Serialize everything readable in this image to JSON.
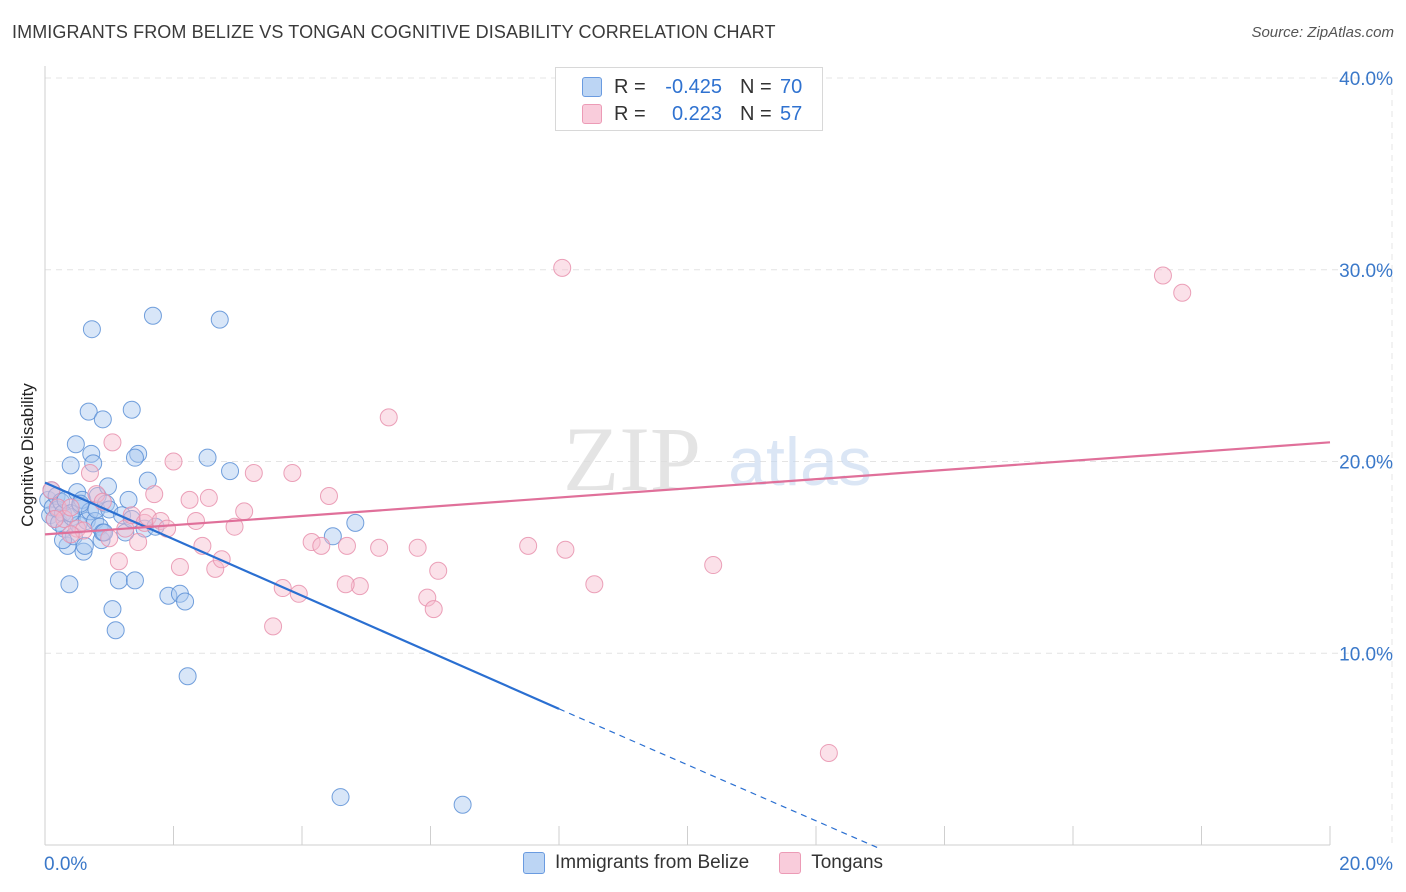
{
  "title": "IMMIGRANTS FROM BELIZE VS TONGAN COGNITIVE DISABILITY CORRELATION CHART",
  "source": "Source: ZipAtlas.com",
  "watermark": {
    "zip": "ZIP",
    "atlas": "atlas"
  },
  "legend": {
    "r_label": "R =",
    "n_label": "N =",
    "series1": {
      "r": "-0.425",
      "n": "70"
    },
    "series2": {
      "r": "0.223",
      "n": "57"
    }
  },
  "colors": {
    "blue_fill": "#a8c8f0",
    "blue_stroke": "#5b8fd6",
    "blue_line": "#2a6fd1",
    "pink_fill": "#f6bccf",
    "pink_stroke": "#e890ad",
    "pink_line": "#e0709a",
    "tick_label": "#3a78c9",
    "grid": "#e4e4e4"
  },
  "chart_data": {
    "type": "scatter",
    "title": "IMMIGRANTS FROM BELIZE VS TONGAN COGNITIVE DISABILITY CORRELATION CHART",
    "xlabel": "",
    "ylabel": "Cognitive Disability",
    "xlim": [
      0,
      20
    ],
    "ylim": [
      0,
      40
    ],
    "x_tick_labels": [
      {
        "value": 0,
        "label": "0.0%"
      },
      {
        "value": 20,
        "label": "20.0%"
      }
    ],
    "y_tick_labels": [
      {
        "value": 10,
        "label": "10.0%"
      },
      {
        "value": 20,
        "label": "20.0%"
      },
      {
        "value": 30,
        "label": "30.0%"
      },
      {
        "value": 40,
        "label": "40.0%"
      }
    ],
    "grid": true,
    "series": [
      {
        "name": "Immigrants from Belize",
        "color": "blue",
        "r": -0.425,
        "n": 70,
        "trend": {
          "x0": 0,
          "y0": 18.9,
          "x1": 8.0,
          "y1": 7.1,
          "dashed_to_x": 13.0,
          "dashed_to_y": -0.2
        },
        "points": [
          [
            0.05,
            18.0
          ],
          [
            0.08,
            17.2
          ],
          [
            0.1,
            18.5
          ],
          [
            0.12,
            17.6
          ],
          [
            0.15,
            17.0
          ],
          [
            0.18,
            18.2
          ],
          [
            0.2,
            17.5
          ],
          [
            0.22,
            16.8
          ],
          [
            0.25,
            17.9
          ],
          [
            0.28,
            17.3
          ],
          [
            0.3,
            16.5
          ],
          [
            0.32,
            18.0
          ],
          [
            0.35,
            15.6
          ],
          [
            0.38,
            13.6
          ],
          [
            0.4,
            19.8
          ],
          [
            0.42,
            17.1
          ],
          [
            0.45,
            16.1
          ],
          [
            0.48,
            20.9
          ],
          [
            0.5,
            18.4
          ],
          [
            0.52,
            16.7
          ],
          [
            0.55,
            17.7
          ],
          [
            0.58,
            18.0
          ],
          [
            0.6,
            15.3
          ],
          [
            0.62,
            15.6
          ],
          [
            0.65,
            16.9
          ],
          [
            0.68,
            22.6
          ],
          [
            0.7,
            17.4
          ],
          [
            0.72,
            20.4
          ],
          [
            0.75,
            19.9
          ],
          [
            0.78,
            16.9
          ],
          [
            0.8,
            17.5
          ],
          [
            0.82,
            18.2
          ],
          [
            0.85,
            16.6
          ],
          [
            0.88,
            15.9
          ],
          [
            0.9,
            16.3
          ],
          [
            0.92,
            16.3
          ],
          [
            0.95,
            17.8
          ],
          [
            0.98,
            18.7
          ],
          [
            1.0,
            17.5
          ],
          [
            1.05,
            12.3
          ],
          [
            1.1,
            11.2
          ],
          [
            1.15,
            13.8
          ],
          [
            1.2,
            17.2
          ],
          [
            1.25,
            16.3
          ],
          [
            1.3,
            18.0
          ],
          [
            1.35,
            17.0
          ],
          [
            1.4,
            13.8
          ],
          [
            1.45,
            20.4
          ],
          [
            1.55,
            16.5
          ],
          [
            1.6,
            19.0
          ],
          [
            1.72,
            16.6
          ],
          [
            1.92,
            13.0
          ],
          [
            2.1,
            13.1
          ],
          [
            2.18,
            12.7
          ],
          [
            2.22,
            8.8
          ],
          [
            2.53,
            20.2
          ],
          [
            2.88,
            19.5
          ],
          [
            2.72,
            27.4
          ],
          [
            1.68,
            27.6
          ],
          [
            0.73,
            26.9
          ],
          [
            0.9,
            22.2
          ],
          [
            1.35,
            22.7
          ],
          [
            1.4,
            20.2
          ],
          [
            4.48,
            16.1
          ],
          [
            4.83,
            16.8
          ],
          [
            4.6,
            2.5
          ],
          [
            6.5,
            2.1
          ],
          [
            0.4,
            17.3
          ],
          [
            0.28,
            15.9
          ],
          [
            0.55,
            17.8
          ]
        ]
      },
      {
        "name": "Tongans",
        "color": "pink",
        "r": 0.223,
        "n": 57,
        "trend": {
          "x0": 0,
          "y0": 16.2,
          "x1": 20,
          "y1": 21.0
        },
        "points": [
          [
            0.1,
            18.5
          ],
          [
            0.2,
            17.6
          ],
          [
            0.3,
            17.0
          ],
          [
            0.4,
            17.6
          ],
          [
            0.5,
            16.5
          ],
          [
            0.6,
            16.4
          ],
          [
            0.7,
            19.4
          ],
          [
            0.8,
            18.3
          ],
          [
            0.9,
            17.9
          ],
          [
            1.0,
            16.0
          ],
          [
            1.05,
            21.0
          ],
          [
            1.15,
            14.8
          ],
          [
            1.25,
            16.5
          ],
          [
            1.35,
            17.2
          ],
          [
            1.45,
            15.8
          ],
          [
            1.55,
            16.8
          ],
          [
            1.6,
            17.1
          ],
          [
            1.7,
            18.3
          ],
          [
            1.8,
            16.9
          ],
          [
            1.9,
            16.5
          ],
          [
            2.0,
            20.0
          ],
          [
            2.1,
            14.5
          ],
          [
            2.25,
            18.0
          ],
          [
            2.35,
            16.9
          ],
          [
            2.45,
            15.6
          ],
          [
            2.55,
            18.1
          ],
          [
            2.65,
            14.4
          ],
          [
            2.75,
            14.9
          ],
          [
            2.95,
            16.6
          ],
          [
            3.1,
            17.4
          ],
          [
            3.25,
            19.4
          ],
          [
            3.55,
            11.4
          ],
          [
            3.7,
            13.4
          ],
          [
            3.85,
            19.4
          ],
          [
            3.95,
            13.1
          ],
          [
            4.15,
            15.8
          ],
          [
            4.3,
            15.6
          ],
          [
            4.42,
            18.2
          ],
          [
            4.9,
            13.5
          ],
          [
            5.2,
            15.5
          ],
          [
            5.35,
            22.3
          ],
          [
            5.8,
            15.5
          ],
          [
            5.95,
            12.9
          ],
          [
            6.05,
            12.3
          ],
          [
            6.12,
            14.3
          ],
          [
            7.52,
            15.6
          ],
          [
            8.05,
            30.1
          ],
          [
            8.1,
            15.4
          ],
          [
            8.55,
            13.6
          ],
          [
            10.4,
            14.6
          ],
          [
            12.2,
            4.8
          ],
          [
            17.4,
            29.7
          ],
          [
            17.7,
            28.8
          ],
          [
            4.7,
            15.6
          ],
          [
            4.68,
            13.6
          ],
          [
            0.15,
            17.0
          ],
          [
            0.4,
            16.2
          ]
        ]
      }
    ]
  }
}
